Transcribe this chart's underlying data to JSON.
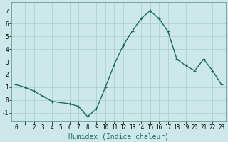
{
  "x": [
    0,
    1,
    2,
    3,
    4,
    5,
    6,
    7,
    8,
    9,
    10,
    11,
    12,
    13,
    14,
    15,
    16,
    17,
    18,
    19,
    20,
    21,
    22,
    23
  ],
  "y": [
    1.2,
    1.0,
    0.7,
    0.3,
    -0.1,
    -0.2,
    -0.3,
    -0.5,
    -1.3,
    -0.7,
    1.0,
    2.8,
    4.3,
    5.4,
    6.4,
    7.0,
    6.4,
    5.4,
    3.2,
    2.7,
    2.3,
    3.2,
    2.3,
    1.2
  ],
  "line_color": "#1a6b5a",
  "marker": "+",
  "markersize": 3,
  "linewidth": 1.0,
  "bg_color": "#cce8e8",
  "grid_color": "#aacaca",
  "xlabel": "Humidex (Indice chaleur)",
  "xlabel_fontsize": 7,
  "xlim": [
    -0.5,
    23.5
  ],
  "ylim": [
    -1.7,
    7.7
  ],
  "yticks": [
    -1,
    0,
    1,
    2,
    3,
    4,
    5,
    6,
    7
  ],
  "xticks": [
    0,
    1,
    2,
    3,
    4,
    5,
    6,
    7,
    8,
    9,
    10,
    11,
    12,
    13,
    14,
    15,
    16,
    17,
    18,
    19,
    20,
    21,
    22,
    23
  ],
  "tick_labelsize": 5.5,
  "xlabel_color": "#1a6b5a",
  "spine_color": "#5a8a8a"
}
